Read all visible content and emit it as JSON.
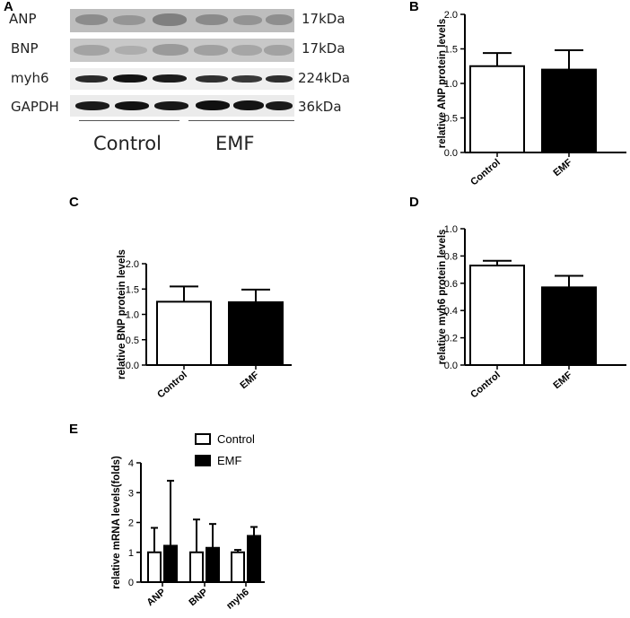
{
  "panel_letters": [
    "A",
    "B",
    "C",
    "D",
    "E"
  ],
  "blot": {
    "rows": [
      {
        "protein": "ANP",
        "kda": "17kDa"
      },
      {
        "protein": "BNP",
        "kda": "17kDa"
      },
      {
        "protein": "myh6",
        "kda": "224kDa"
      },
      {
        "protein": "GAPDH",
        "kda": "36kDa"
      }
    ],
    "groups": [
      "Control",
      "EMF"
    ]
  },
  "colors": {
    "control_fill": "#ffffff",
    "emf_fill": "#000000",
    "axis": "#000000"
  },
  "chart_data": [
    {
      "type": "bar",
      "panel": "B",
      "categories": [
        "Control",
        "EMF"
      ],
      "values": [
        1.25,
        1.2
      ],
      "errors": [
        0.19,
        0.28
      ],
      "ylabel": "relative ANP protein levels",
      "ylim": [
        0,
        2.0
      ],
      "yticks": [
        "0.0",
        "0.5",
        "1.0",
        "1.5",
        "2.0"
      ]
    },
    {
      "type": "bar",
      "panel": "C",
      "categories": [
        "Control",
        "EMF"
      ],
      "values": [
        1.25,
        1.24
      ],
      "errors": [
        0.3,
        0.25
      ],
      "ylabel": "relative BNP protein levels",
      "ylim": [
        0,
        2.0
      ],
      "yticks": [
        "0.0",
        "0.5",
        "1.0",
        "1.5",
        "2.0"
      ]
    },
    {
      "type": "bar",
      "panel": "D",
      "categories": [
        "Control",
        "EMF"
      ],
      "values": [
        0.73,
        0.57
      ],
      "errors": [
        0.035,
        0.085
      ],
      "ylabel": "relative myh6 protein levels",
      "ylim": [
        0,
        1.0
      ],
      "yticks": [
        "0.0",
        "0.2",
        "0.4",
        "0.6",
        "0.8",
        "1.0"
      ]
    },
    {
      "type": "bar",
      "panel": "E",
      "categories": [
        "ANP",
        "BNP",
        "myh6"
      ],
      "series": [
        {
          "name": "Control",
          "values": [
            1.0,
            1.0,
            1.0
          ],
          "errors": [
            0.82,
            1.1,
            0.08
          ]
        },
        {
          "name": "EMF",
          "values": [
            1.22,
            1.15,
            1.55
          ],
          "errors": [
            2.18,
            0.8,
            0.3
          ]
        }
      ],
      "ylabel": "relative mRNA levels(folds)",
      "ylim": [
        0,
        4
      ],
      "yticks": [
        "0",
        "1",
        "2",
        "3",
        "4"
      ],
      "legend": "top"
    }
  ]
}
